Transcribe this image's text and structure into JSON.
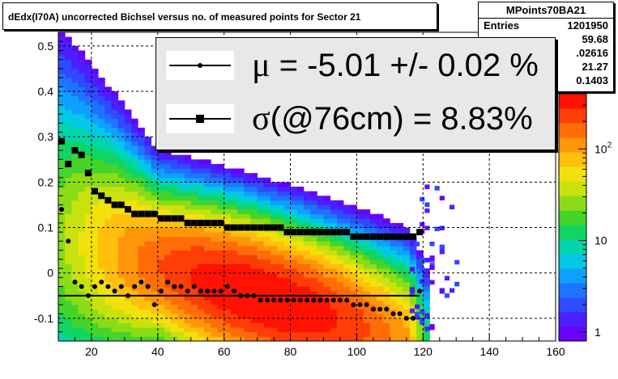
{
  "title": "dEdx(I70A) uncorrected Bichsel versus no. of measured points for Sector 21",
  "stats": {
    "name": "MPoints70BA21",
    "rows": [
      {
        "label": "Entries",
        "value": "1201950"
      },
      {
        "label": "",
        "value": "59.68"
      },
      {
        "label": "",
        "value": ".02616"
      },
      {
        "label": "",
        "value": "21.27"
      },
      {
        "label": "",
        "value": "0.1403"
      }
    ]
  },
  "legend": {
    "mu": {
      "symbol": "μ",
      "text": " = -5.01 +/-  0.02 %"
    },
    "sigma": {
      "symbol": "σ",
      "text": "(@76cm) =  8.83%"
    }
  },
  "colors": {
    "mu_marker": "#000000",
    "sigma_marker": "#000000",
    "fit_line": "#000000",
    "grid": "#000000"
  },
  "chart_data": {
    "type": "heatmap",
    "xlim": [
      10,
      160
    ],
    "ylim": [
      -0.15,
      0.53
    ],
    "x_ticks": [
      "20",
      "40",
      "60",
      "80",
      "100",
      "120",
      "140",
      "160"
    ],
    "y_ticks": [
      "-0.1",
      "0",
      "0.1",
      "0.2",
      "0.3",
      "0.4",
      "0.5"
    ],
    "grid": true,
    "colorbar": {
      "scale": "log",
      "ticks": [
        {
          "value": 1,
          "label": "1"
        },
        {
          "value": 10,
          "label": "10"
        },
        {
          "value": 100,
          "label": "10",
          "exp": "2"
        }
      ],
      "range": [
        0.8,
        400
      ]
    },
    "density": {
      "center_x": 72,
      "center_y": -0.055,
      "sigma_x": 16,
      "sigma_y": 0.07,
      "peak": 400
    },
    "fit_line": {
      "x": [
        10,
        119
      ],
      "y": [
        -0.05,
        -0.05
      ]
    },
    "series": [
      {
        "marker": "circle",
        "x": [
          11,
          13,
          15,
          17,
          19,
          21,
          23,
          25,
          27,
          29,
          31,
          33,
          35,
          37,
          39,
          41,
          43,
          45,
          47,
          49,
          51,
          53,
          55,
          57,
          59,
          61,
          63,
          65,
          67,
          69,
          71,
          73,
          75,
          77,
          79,
          81,
          83,
          85,
          87,
          89,
          91,
          93,
          95,
          97,
          99,
          101,
          103,
          105,
          107,
          109,
          111,
          113,
          115,
          117,
          119
        ],
        "y": [
          0.14,
          0.07,
          -0.02,
          -0.03,
          -0.05,
          -0.03,
          -0.02,
          -0.03,
          -0.04,
          -0.03,
          -0.05,
          -0.03,
          -0.02,
          -0.03,
          -0.07,
          -0.04,
          -0.02,
          -0.03,
          -0.03,
          -0.04,
          -0.03,
          -0.04,
          -0.04,
          -0.04,
          -0.04,
          -0.03,
          -0.04,
          -0.05,
          -0.05,
          -0.05,
          -0.06,
          -0.06,
          -0.06,
          -0.06,
          -0.06,
          -0.06,
          -0.06,
          -0.06,
          -0.06,
          -0.06,
          -0.06,
          -0.06,
          -0.06,
          -0.06,
          -0.07,
          -0.07,
          -0.07,
          -0.08,
          -0.08,
          -0.08,
          -0.09,
          -0.09,
          -0.1,
          -0.1,
          -0.04
        ]
      },
      {
        "marker": "square",
        "x": [
          11,
          13,
          15,
          17,
          19,
          21,
          23,
          25,
          27,
          29,
          31,
          33,
          35,
          37,
          39,
          41,
          43,
          45,
          47,
          49,
          51,
          53,
          55,
          57,
          59,
          61,
          63,
          65,
          67,
          69,
          71,
          73,
          75,
          77,
          79,
          81,
          83,
          85,
          87,
          89,
          91,
          93,
          95,
          97,
          99,
          101,
          103,
          105,
          107,
          109,
          111,
          113,
          115,
          117,
          119
        ],
        "y": [
          0.29,
          0.24,
          0.27,
          0.26,
          0.22,
          0.18,
          0.17,
          0.16,
          0.15,
          0.15,
          0.14,
          0.13,
          0.13,
          0.13,
          0.13,
          0.12,
          0.12,
          0.12,
          0.12,
          0.11,
          0.11,
          0.11,
          0.11,
          0.11,
          0.11,
          0.1,
          0.1,
          0.1,
          0.1,
          0.1,
          0.1,
          0.1,
          0.1,
          0.1,
          0.09,
          0.09,
          0.09,
          0.09,
          0.09,
          0.09,
          0.09,
          0.09,
          0.09,
          0.09,
          0.08,
          0.08,
          0.08,
          0.08,
          0.08,
          0.08,
          0.08,
          0.08,
          0.08,
          0.08,
          0.09
        ]
      }
    ]
  }
}
